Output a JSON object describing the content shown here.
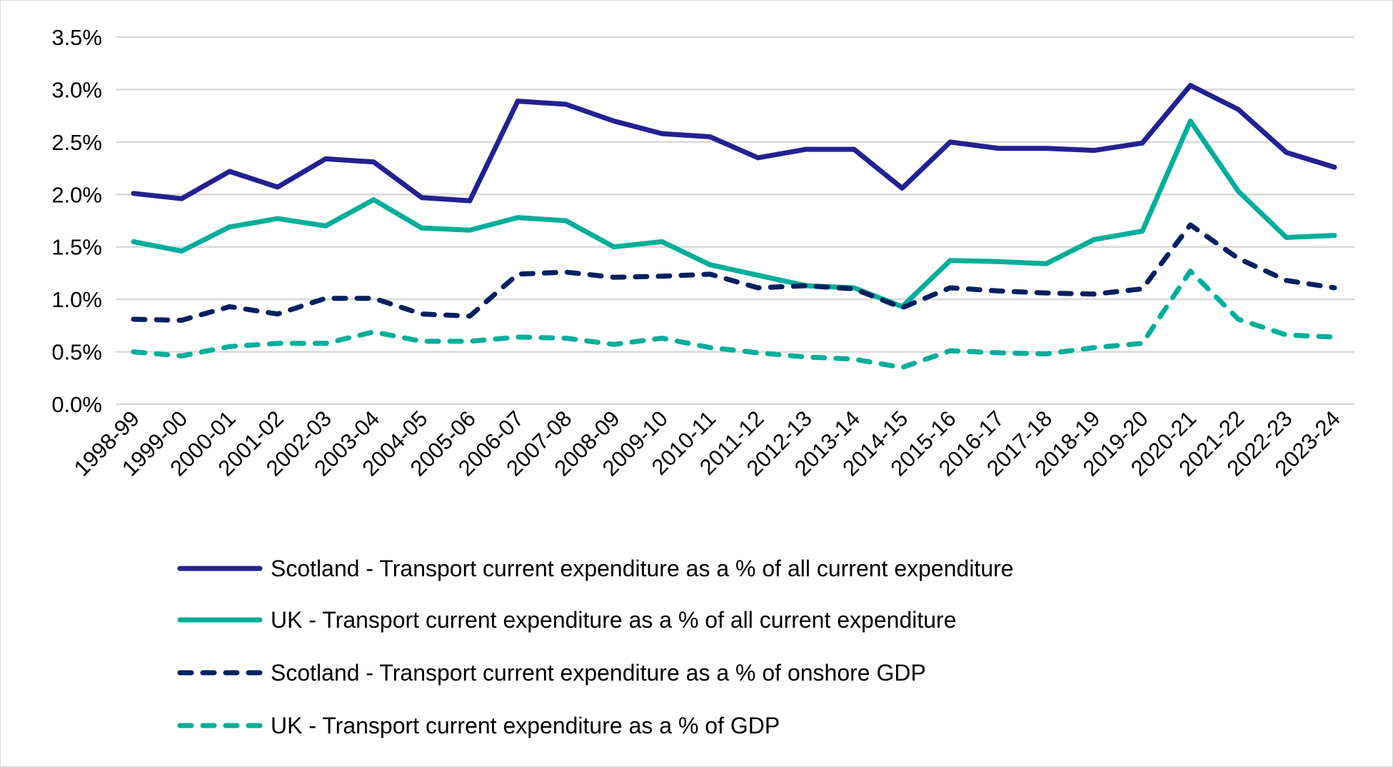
{
  "chart_data": {
    "type": "line",
    "title": "",
    "xlabel": "",
    "ylabel": "",
    "ylim": [
      0,
      3.5
    ],
    "yticks": [
      "0.0%",
      "0.5%",
      "1.0%",
      "1.5%",
      "2.0%",
      "2.5%",
      "3.0%",
      "3.5%"
    ],
    "grid": true,
    "legend_placement": "bottom",
    "categories": [
      "1998-99",
      "1999-00",
      "2000-01",
      "2001-02",
      "2002-03",
      "2003-04",
      "2004-05",
      "2005-06",
      "2006-07",
      "2007-08",
      "2008-09",
      "2009-10",
      "2010-11",
      "2011-12",
      "2012-13",
      "2013-14",
      "2014-15",
      "2015-16",
      "2016-17",
      "2017-18",
      "2018-19",
      "2019-20",
      "2020-21",
      "2021-22",
      "2022-23",
      "2023-24"
    ],
    "series": [
      {
        "name": "Scotland - Transport current expenditure as a % of all current expenditure",
        "color": "#232191",
        "dash": false,
        "values": [
          2.01,
          1.96,
          2.22,
          2.07,
          2.34,
          2.31,
          1.97,
          1.94,
          2.89,
          2.86,
          2.7,
          2.58,
          2.55,
          2.35,
          2.43,
          2.43,
          2.06,
          2.5,
          2.44,
          2.44,
          2.42,
          2.49,
          3.04,
          2.81,
          2.4,
          2.26
        ]
      },
      {
        "name": "UK - Transport current expenditure as a % of all current expenditure",
        "color": "#00ae9a",
        "dash": false,
        "values": [
          1.55,
          1.46,
          1.69,
          1.77,
          1.7,
          1.95,
          1.68,
          1.66,
          1.78,
          1.75,
          1.5,
          1.55,
          1.33,
          1.23,
          1.13,
          1.11,
          0.93,
          1.37,
          1.36,
          1.34,
          1.57,
          1.65,
          2.7,
          2.03,
          1.59,
          1.61
        ]
      },
      {
        "name": "Scotland - Transport current expenditure as a % of onshore GDP",
        "color": "#002060",
        "dash": true,
        "values": [
          0.81,
          0.8,
          0.93,
          0.86,
          1.01,
          1.01,
          0.86,
          0.84,
          1.24,
          1.26,
          1.21,
          1.22,
          1.24,
          1.11,
          1.13,
          1.1,
          0.92,
          1.11,
          1.08,
          1.06,
          1.05,
          1.1,
          1.71,
          1.39,
          1.18,
          1.11
        ]
      },
      {
        "name": "UK - Transport current expenditure as a % of GDP",
        "color": "#00ae9a",
        "dash": true,
        "values": [
          0.5,
          0.46,
          0.55,
          0.58,
          0.58,
          0.69,
          0.6,
          0.6,
          0.64,
          0.63,
          0.57,
          0.63,
          0.54,
          0.49,
          0.45,
          0.43,
          0.35,
          0.51,
          0.49,
          0.48,
          0.54,
          0.58,
          1.27,
          0.81,
          0.66,
          0.64
        ]
      }
    ]
  }
}
